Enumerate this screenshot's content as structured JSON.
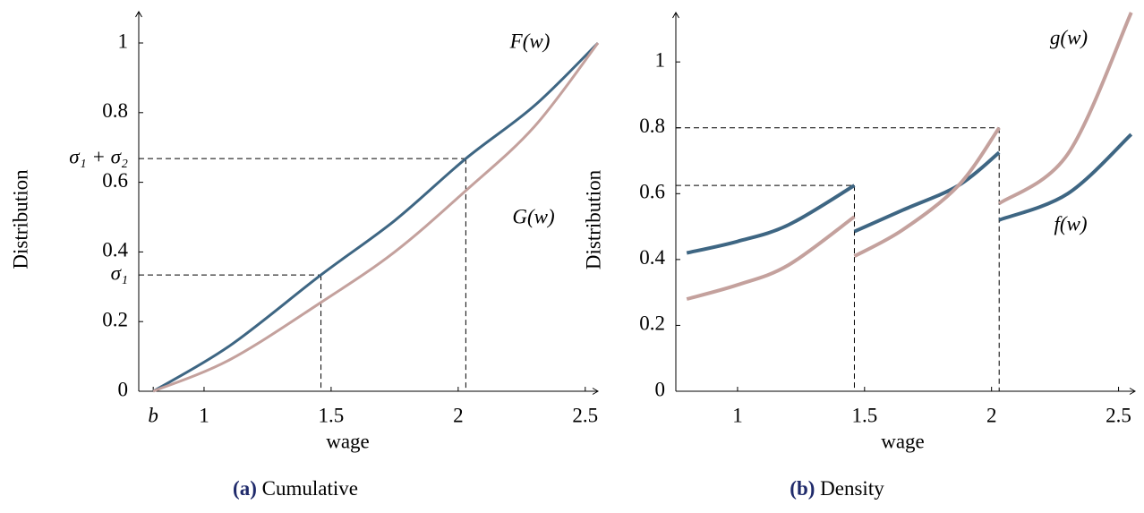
{
  "chart_data": [
    {
      "type": "line",
      "caption_label": "(a)",
      "caption": "Cumulative",
      "xlabel": "wage",
      "ylabel": "Distribution",
      "xlim": [
        0.743,
        2.55
      ],
      "ylim": [
        0,
        1.09
      ],
      "xticks": [
        {
          "value": 0.8,
          "label": "b"
        },
        1,
        1.5,
        2,
        2.5
      ],
      "yticks": [
        0,
        0.2,
        0.4,
        0.6,
        0.8,
        1
      ],
      "x": [
        0.8,
        1.1,
        1.46,
        1.75,
        2.03,
        2.3,
        2.55
      ],
      "series": [
        {
          "name": "F(w)",
          "color": "#3e6683",
          "values": [
            0,
            0.13,
            0.334,
            0.49,
            0.668,
            0.82,
            1
          ]
        },
        {
          "name": "G(w)",
          "color": "#c4a19d",
          "values": [
            0,
            0.09,
            0.255,
            0.4,
            0.576,
            0.76,
            1
          ]
        }
      ],
      "guides": [
        {
          "x": 1.46,
          "y": 0.334,
          "label": "σ₁"
        },
        {
          "x": 2.03,
          "y": 0.668,
          "label": "σ₁ + σ₂"
        }
      ]
    },
    {
      "type": "line",
      "caption_label": "(b)",
      "caption": "Density",
      "xlabel": "wage",
      "ylabel": "Distribution",
      "xlim": [
        0.757,
        2.565
      ],
      "ylim": [
        0,
        1.15
      ],
      "xticks": [
        1,
        1.5,
        2,
        2.5
      ],
      "yticks": [
        0,
        0.2,
        0.4,
        0.6,
        0.8,
        1
      ],
      "x": [
        0.8,
        1.0,
        1.2,
        1.46,
        1.46,
        1.46,
        1.65,
        1.87,
        2.03,
        2.03,
        2.03,
        2.3,
        2.55
      ],
      "series": [
        {
          "name": "f(w)",
          "color": "#3e6683",
          "values": [
            0.42,
            0.455,
            0.505,
            0.625,
            null,
            0.485,
            0.55,
            0.625,
            0.725,
            null,
            0.52,
            0.6,
            0.78
          ]
        },
        {
          "name": "g(w)",
          "color": "#c4a19d",
          "values": [
            0.28,
            0.323,
            0.383,
            0.53,
            null,
            0.41,
            0.49,
            0.625,
            0.8,
            null,
            0.57,
            0.72,
            1.15
          ]
        }
      ],
      "guides": [
        {
          "x": 1.46,
          "y": 0.625
        },
        {
          "x": 2.03,
          "y": 0.8
        }
      ]
    }
  ]
}
